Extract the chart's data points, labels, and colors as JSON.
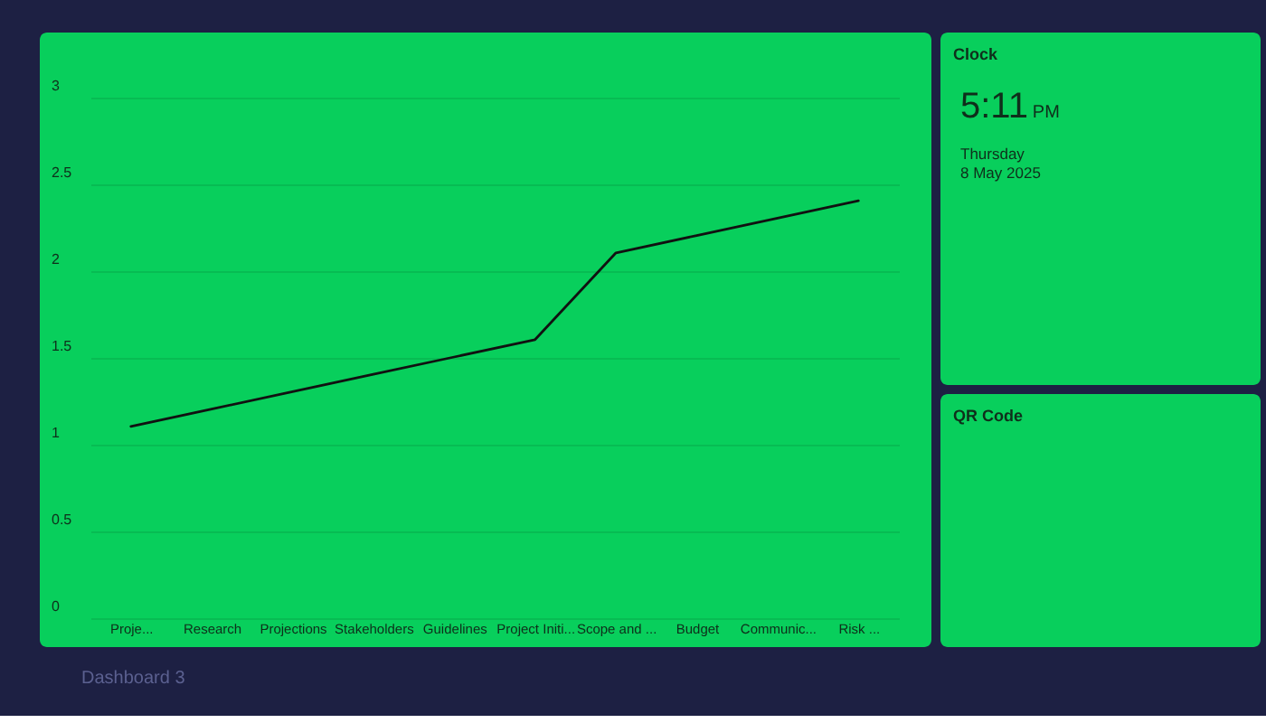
{
  "chart_data": [
    {
      "type": "line",
      "categories": [
        "Proje...",
        "Research",
        "Projections",
        "Stakeholders",
        "Guidelines",
        "Project Initi...",
        "Scope and ...",
        "Budget",
        "Communic...",
        "Risk ..."
      ],
      "series": [
        {
          "color": "#111111",
          "values": [
            1.1,
            1.2,
            1.3,
            1.4,
            1.5,
            1.6,
            2.1,
            2.2,
            2.3,
            2.4
          ]
        }
      ],
      "ylim": [
        0,
        3
      ],
      "yticks": [
        0,
        0.5,
        1,
        1.5,
        2,
        2.5,
        3
      ],
      "grid": "y",
      "line_style": "solid",
      "annotations": [
        "Dashboard 3"
      ]
    },
    {
      "type": "other",
      "title": "Clock",
      "annotations": [
        "5:11",
        "PM",
        "Thursday",
        "8 May 2025"
      ]
    },
    {
      "type": "other",
      "title": "QR Code"
    }
  ]
}
